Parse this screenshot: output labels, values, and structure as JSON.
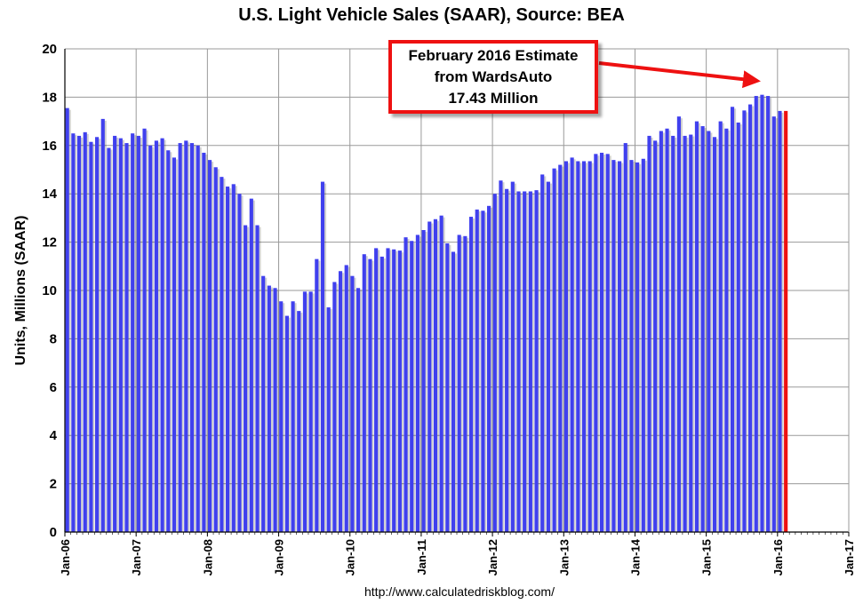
{
  "chart_data": {
    "type": "bar",
    "title": "U.S. Light Vehicle Sales (SAAR), Source: BEA",
    "ylabel": "Units, Millions (SAAR)",
    "xlabel": "",
    "ylim": [
      0,
      20
    ],
    "y_ticks": [
      0,
      2,
      4,
      6,
      8,
      10,
      12,
      14,
      16,
      18,
      20
    ],
    "x_ticks": [
      "Jan-06",
      "Jan-07",
      "Jan-08",
      "Jan-09",
      "Jan-10",
      "Jan-11",
      "Jan-12",
      "Jan-13",
      "Jan-14",
      "Jan-15",
      "Jan-16",
      "Jan-17"
    ],
    "grid": true,
    "x_start": "2006-01",
    "series": [
      {
        "color": "#4040ee",
        "values": [
          17.55,
          16.5,
          16.4,
          16.55,
          16.15,
          16.35,
          17.1,
          15.9,
          16.4,
          16.3,
          16.1,
          16.5,
          16.4,
          16.7,
          16.0,
          16.2,
          16.3,
          15.8,
          15.5,
          16.1,
          16.2,
          16.1,
          16.0,
          15.7,
          15.4,
          15.1,
          14.7,
          14.3,
          14.4,
          14.0,
          12.7,
          13.8,
          12.7,
          10.6,
          10.2,
          10.1,
          9.55,
          8.95,
          9.55,
          9.15,
          9.95,
          9.95,
          11.3,
          14.5,
          9.3,
          10.35,
          10.8,
          11.05,
          10.6,
          10.1,
          11.5,
          11.3,
          11.75,
          11.4,
          11.75,
          11.7,
          11.65,
          12.2,
          12.05,
          12.3,
          12.5,
          12.85,
          12.95,
          13.1,
          11.95,
          11.6,
          12.3,
          12.25,
          13.05,
          13.35,
          13.3,
          13.5,
          14.0,
          14.55,
          14.2,
          14.5,
          14.1,
          14.1,
          14.1,
          14.15,
          14.8,
          14.5,
          15.05,
          15.2,
          15.35,
          15.5,
          15.35,
          15.35,
          15.35,
          15.65,
          15.7,
          15.65,
          15.4,
          15.35,
          16.1,
          15.4,
          15.3,
          15.45,
          16.4,
          16.2,
          16.6,
          16.7,
          16.4,
          17.2,
          16.4,
          16.45,
          17.0,
          16.8,
          16.6,
          16.35,
          17.0,
          16.7,
          17.6,
          16.95,
          17.45,
          17.7,
          18.05,
          18.1,
          18.05,
          17.2,
          17.43
        ]
      },
      {
        "name": "February 2016 Estimate",
        "color": "#ee1111",
        "x": "2016-02",
        "value": 17.43
      }
    ]
  },
  "annotation": {
    "line1": "February 2016 Estimate",
    "line2": "from WardsAuto",
    "line3": "17.43 Million"
  },
  "source": "http://www.calculatedriskblog.com/"
}
